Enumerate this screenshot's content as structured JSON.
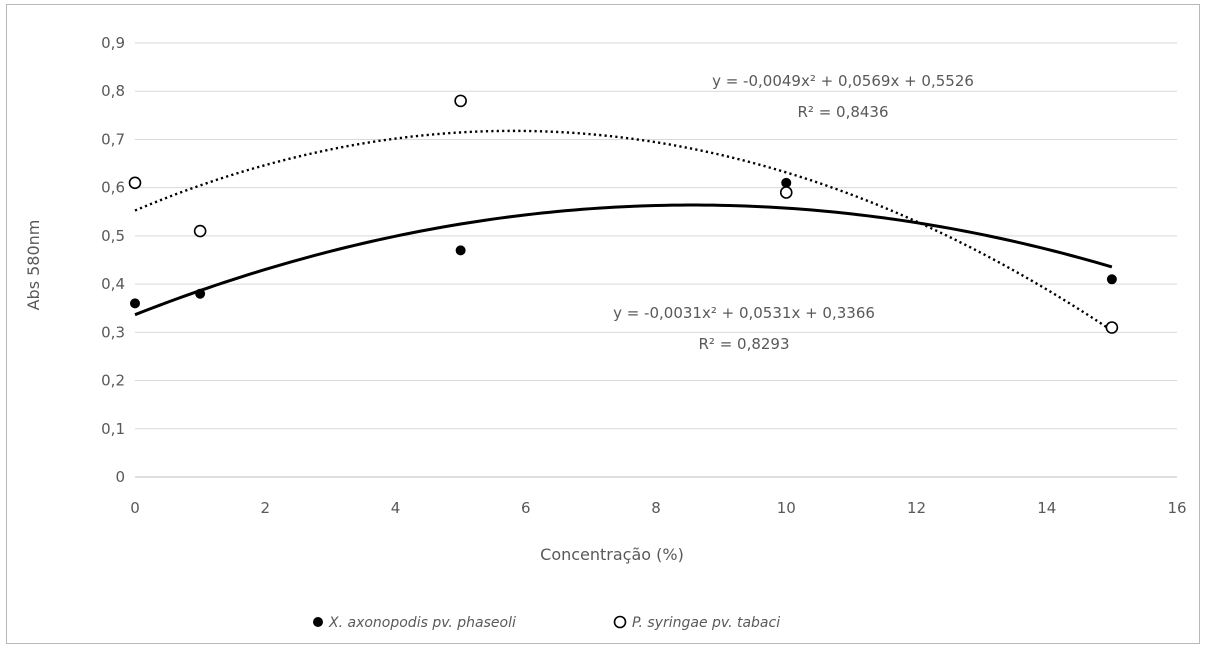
{
  "chart_data": {
    "type": "scatter",
    "title": "",
    "xlabel": "Concentração (%)",
    "ylabel": "Abs 580nm",
    "xlim": [
      0,
      16
    ],
    "ylim": [
      0,
      0.9
    ],
    "x_ticks": [
      "0",
      "2",
      "4",
      "6",
      "8",
      "10",
      "12",
      "14",
      "16"
    ],
    "y_ticks": [
      "0",
      "0,1",
      "0,2",
      "0,3",
      "0,4",
      "0,5",
      "0,6",
      "0,7",
      "0,8",
      "0,9"
    ],
    "grid": "horizontal",
    "legend_position": "bottom",
    "series": [
      {
        "name": "X. axonopodis pv. phaseoli",
        "marker": "filled-circle",
        "color": "#000000",
        "x": [
          0,
          1,
          5,
          10,
          15
        ],
        "y": [
          0.36,
          0.38,
          0.47,
          0.61,
          0.41
        ],
        "trendline": {
          "type": "polynomial-2",
          "line_style": "solid",
          "coefficients": [
            -0.0031,
            0.0531,
            0.3366
          ],
          "equation": "y = -0,0031x² + 0,0531x + 0,3366",
          "r2": "R² = 0,8293"
        }
      },
      {
        "name": "P. syringae pv. tabaci",
        "marker": "open-circle",
        "color": "#000000",
        "x": [
          0,
          1,
          5,
          10,
          15
        ],
        "y": [
          0.61,
          0.51,
          0.78,
          0.59,
          0.31
        ],
        "trendline": {
          "type": "polynomial-2",
          "line_style": "dotted",
          "coefficients": [
            -0.0049,
            0.0569,
            0.5526
          ],
          "equation": "y = -0,0049x² + 0,0569x + 0,5526",
          "r2": "R² = 0,8436"
        }
      }
    ]
  }
}
